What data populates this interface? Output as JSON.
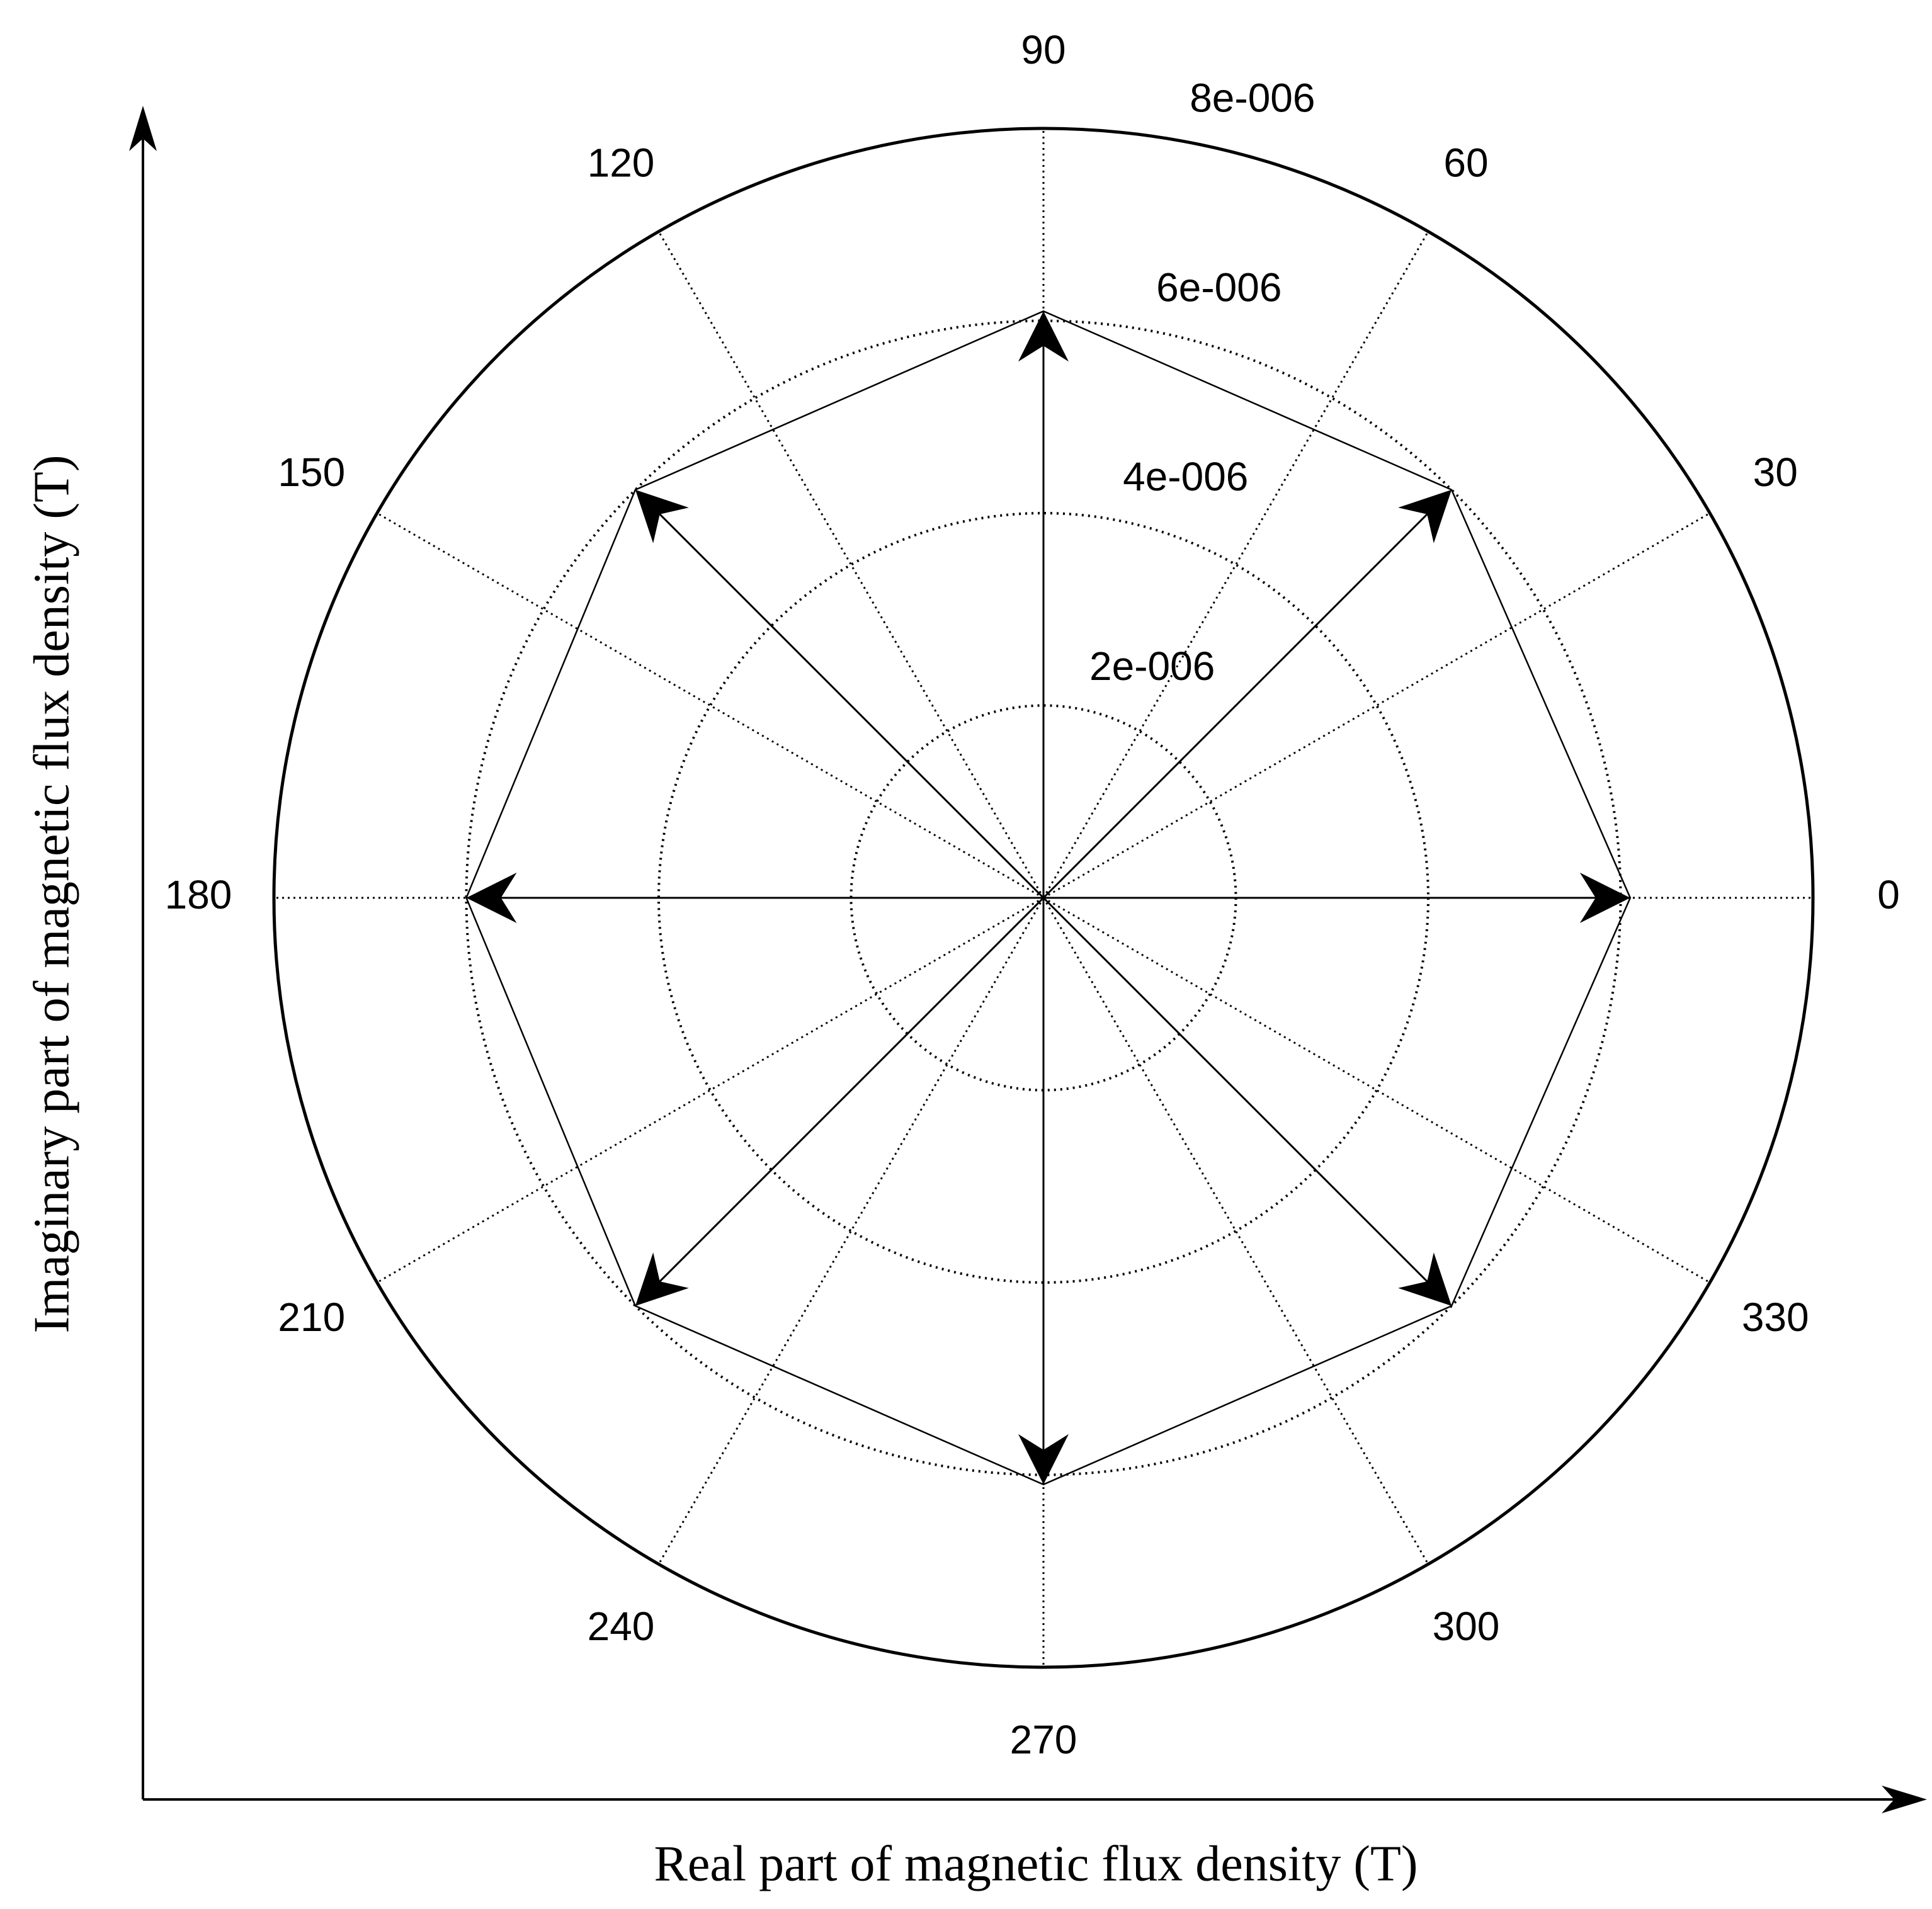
{
  "chart_data": {
    "type": "compass",
    "x_label": "Real part of magnetic flux density (T)",
    "y_label": "Imaginary part of magnetic flux density (T)",
    "rlim": [
      0,
      8e-06
    ],
    "rticks": [
      {
        "value": 2e-06,
        "label": "2e-006"
      },
      {
        "value": 4e-06,
        "label": "4e-006"
      },
      {
        "value": 6e-06,
        "label": "6e-006"
      },
      {
        "value": 8e-06,
        "label": "8e-006"
      }
    ],
    "thetaticks": [
      0,
      30,
      60,
      90,
      120,
      150,
      180,
      210,
      240,
      270,
      300,
      330
    ],
    "grid": true,
    "color": "#000000",
    "series": [
      {
        "theta": [
          0,
          45,
          90,
          135,
          180,
          225,
          270,
          315
        ],
        "r": [
          6.1e-06,
          6e-06,
          6.1e-06,
          6e-06,
          6e-06,
          6e-06,
          6.1e-06,
          6e-06
        ]
      }
    ]
  }
}
